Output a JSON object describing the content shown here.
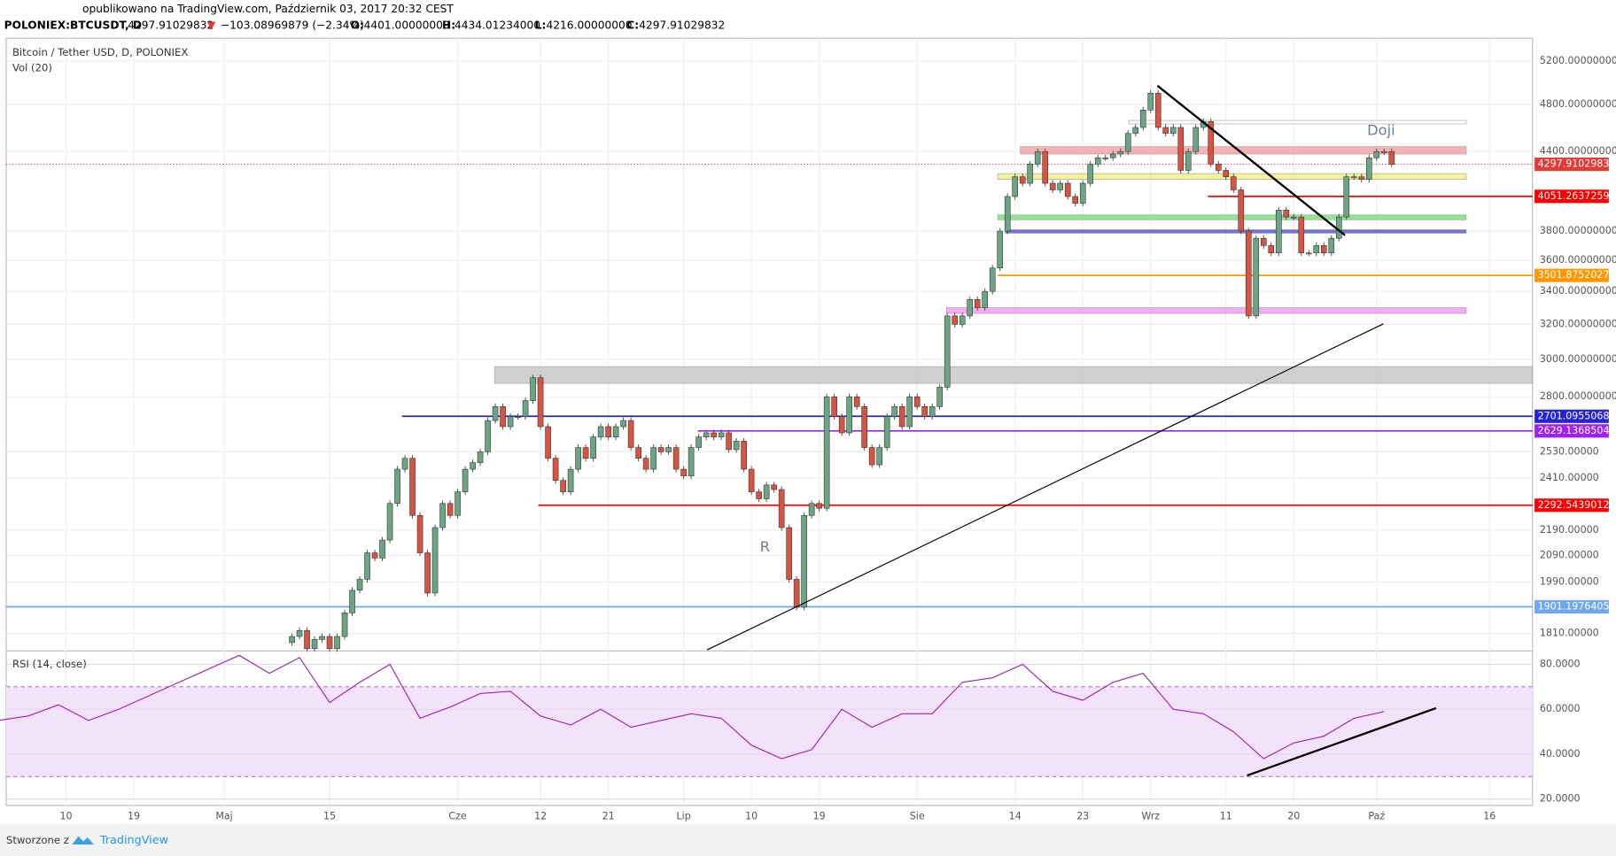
{
  "header": {
    "published": "opublikowano na TradingView.com, Październik 03, 2017 20:32 CEST",
    "symbol": "POLONIEX:BTCUSDT, D",
    "last": "4297.91029832",
    "arrow": "▼",
    "change": "−103.08969879 (−2.34%)",
    "o_label": "O:",
    "open": "4401.00000000",
    "h_label": "H:",
    "high": "4434.01234000",
    "l_label": "L:",
    "low": "4216.00000000",
    "c_label": "C:",
    "close": "4297.91029832"
  },
  "footer": {
    "made_with": "Stworzone z",
    "brand": "TradingView"
  },
  "chart_data": [
    {
      "type": "candlestick",
      "title": "Bitcoin / Tether USD, D, POLONIEX",
      "subtitle": "Vol (20)",
      "log_scale": true,
      "grid": true,
      "up_color": "#6ba583",
      "down_color": "#d75442",
      "x": [
        38,
        39,
        40,
        41,
        42,
        43,
        44,
        45,
        46,
        47,
        48,
        49,
        50,
        51,
        52,
        53,
        54,
        55,
        56,
        57,
        58,
        59,
        60,
        61,
        62,
        63,
        64,
        65,
        66,
        67,
        68,
        69,
        70,
        71,
        72,
        73,
        74,
        75,
        76,
        77,
        78,
        79,
        80,
        81,
        82,
        83,
        84,
        85,
        86,
        87,
        88,
        89,
        90,
        91,
        92,
        93,
        94,
        95,
        96,
        97,
        98,
        99,
        100,
        101,
        102,
        103,
        104,
        105,
        106,
        107,
        108,
        109,
        110,
        111,
        112,
        113,
        114,
        115,
        116,
        117,
        118,
        119,
        120,
        121,
        122,
        123,
        124,
        125,
        126,
        127,
        128,
        129,
        130,
        131,
        132,
        133,
        134,
        135,
        136,
        137,
        138,
        139,
        140,
        141,
        142,
        143,
        144,
        145,
        146,
        147,
        148,
        149,
        150,
        151,
        152,
        153,
        154,
        155,
        156,
        157,
        158,
        159,
        160,
        161,
        162,
        163,
        164,
        165,
        166,
        167,
        168,
        169,
        170,
        171,
        172,
        173,
        174,
        175,
        176,
        177,
        178,
        179,
        180,
        181,
        182,
        183,
        184,
        185
      ],
      "values": [
        1780,
        1800,
        1820,
        1760,
        1790,
        1800,
        1760,
        1800,
        1880,
        1960,
        2000,
        2100,
        2080,
        2150,
        2300,
        2450,
        2500,
        2250,
        2100,
        1950,
        2200,
        2300,
        2250,
        2350,
        2450,
        2480,
        2530,
        2680,
        2750,
        2650,
        2700,
        2700,
        2780,
        2900,
        2650,
        2500,
        2400,
        2350,
        2450,
        2550,
        2500,
        2600,
        2650,
        2600,
        2650,
        2680,
        2550,
        2500,
        2450,
        2550,
        2530,
        2550,
        2450,
        2420,
        2550,
        2600,
        2620,
        2600,
        2620,
        2540,
        2580,
        2450,
        2350,
        2320,
        2380,
        2360,
        2200,
        2000,
        1900,
        2250,
        2300,
        2280,
        2800,
        2700,
        2620,
        2800,
        2750,
        2550,
        2470,
        2550,
        2700,
        2750,
        2650,
        2800,
        2750,
        2700,
        2750,
        2850,
        3250,
        3200,
        3250,
        3350,
        3300,
        3400,
        3550,
        3800,
        4050,
        4200,
        4150,
        4300,
        4400,
        4150,
        4100,
        4150,
        4050,
        4000,
        4150,
        4300,
        4350,
        4350,
        4380,
        4400,
        4550,
        4600,
        4750,
        4900,
        4600,
        4550,
        4600,
        4250,
        4400,
        4600,
        4650,
        4300,
        4250,
        4200,
        4100,
        3800,
        3250,
        3750,
        3700,
        3650,
        3950,
        3900,
        3900,
        3650,
        3650,
        3700,
        3650,
        3750,
        3900,
        4200,
        4200,
        4180,
        4350,
        4400,
        4400,
        4298
      ],
      "xlim": [
        1.06,
        203.7
      ],
      "ylim": [
        1756,
        5422
      ],
      "xticks": [
        {
          "value": 9,
          "label": "10"
        },
        {
          "value": 18,
          "label": "19"
        },
        {
          "value": 30,
          "label": "Maj"
        },
        {
          "value": 44,
          "label": "15"
        },
        {
          "value": 61,
          "label": "Cze"
        },
        {
          "value": 72,
          "label": "12"
        },
        {
          "value": 81,
          "label": "21"
        },
        {
          "value": 91,
          "label": "Lip"
        },
        {
          "value": 100,
          "label": "10"
        },
        {
          "value": 109,
          "label": "19"
        },
        {
          "value": 122,
          "label": "Sie"
        },
        {
          "value": 135,
          "label": "14"
        },
        {
          "value": 144,
          "label": "23"
        },
        {
          "value": 153,
          "label": "Wrz"
        },
        {
          "value": 163,
          "label": "11"
        },
        {
          "value": 172,
          "label": "20"
        },
        {
          "value": 183,
          "label": "Paź"
        },
        {
          "value": 198,
          "label": "16"
        }
      ],
      "yticks": [
        {
          "value": 5200,
          "label": "5200.00000000"
        },
        {
          "value": 4800,
          "label": "4800.00000000"
        },
        {
          "value": 4400,
          "label": "4400.00000000"
        },
        {
          "value": 3800,
          "label": "3800.00000000"
        },
        {
          "value": 3600,
          "label": "3600.00000000"
        },
        {
          "value": 3400,
          "label": "3400.00000000"
        },
        {
          "value": 3200,
          "label": "3200.00000000"
        },
        {
          "value": 3000,
          "label": "3000.00000000"
        },
        {
          "value": 2800,
          "label": "2800.00000000"
        },
        {
          "value": 2530,
          "label": "2530.00000"
        },
        {
          "value": 2410,
          "label": "2410.00000"
        },
        {
          "value": 2190,
          "label": "2190.00000"
        },
        {
          "value": 2090,
          "label": "2090.00000"
        },
        {
          "value": 1990,
          "label": "1990.00000"
        },
        {
          "value": 1810,
          "label": "1810.00000"
        }
      ],
      "last_price": {
        "value": 4297.91029832,
        "label": "4297.91029832",
        "color": "#e53935"
      },
      "levels": [
        {
          "value": 4051.26372591,
          "label": "4051.26372591",
          "color": "#ff0000",
          "from": 160.6
        },
        {
          "value": 3501.87520278,
          "label": "3501.87520278",
          "color": "#ff9800",
          "from": 132.7
        },
        {
          "value": 2701.09550689,
          "label": "2701.09550689",
          "color": "#2424d6",
          "from": 53.6
        },
        {
          "value": 2629.13685046,
          "label": "2629.13685046",
          "color": "#a020f0",
          "from": 92.9
        },
        {
          "value": 2292.54390125,
          "label": "2292.54390125",
          "color": "#ff0000",
          "from": 71.7
        },
        {
          "value": 1901.19764056,
          "label": "1901.19764056",
          "color": "#6fa8f0",
          "from": 1.06
        }
      ],
      "zones": [
        {
          "from": 65.9,
          "to": 203.7,
          "low": 2870,
          "high": 2960,
          "color": "#c8c8c8"
        },
        {
          "from": 135.7,
          "to": 194.9,
          "low": 4380,
          "high": 4440,
          "color": "#f4a6a6"
        },
        {
          "from": 150.1,
          "to": 194.9,
          "low": 4630,
          "high": 4660,
          "color": "#ffffff"
        },
        {
          "from": 132.7,
          "to": 194.9,
          "low": 4180,
          "high": 4225,
          "color": "#f5f08a"
        },
        {
          "from": 132.7,
          "to": 194.9,
          "low": 3880,
          "high": 3915,
          "color": "#7ee07e"
        },
        {
          "from": 133.7,
          "to": 194.9,
          "low": 3785,
          "high": 3810,
          "color": "#5a5adc"
        },
        {
          "from": 125.9,
          "to": 194.9,
          "low": 3265,
          "high": 3300,
          "color": "#f59cf2"
        }
      ],
      "trendlines": [
        {
          "x": [
            153.9,
            178.8
          ],
          "y": [
            4968,
            3771
          ],
          "width": 2
        },
        {
          "x": [
            94.1,
            183.9
          ],
          "y": [
            1756,
            3203
          ],
          "width": 1
        }
      ],
      "annotations": [
        {
          "text": "R",
          "x": 101.8,
          "y": 2120
        },
        {
          "text": "Doji",
          "x": 183.6,
          "y": 4569
        }
      ]
    },
    {
      "type": "line",
      "title": "RSI (14, close)",
      "color": "#9c27b0",
      "band": [
        30,
        70
      ],
      "x": [
        0,
        4,
        8,
        12,
        16,
        20,
        24,
        28,
        32,
        36,
        40,
        44,
        48,
        52,
        56,
        60,
        64,
        68,
        72,
        76,
        80,
        84,
        88,
        92,
        96,
        100,
        104,
        108,
        112,
        116,
        120,
        124,
        128,
        132,
        136,
        140,
        144,
        148,
        152,
        156,
        160,
        164,
        168,
        172,
        176,
        180,
        184
      ],
      "values": [
        55,
        57,
        62,
        55,
        60,
        66,
        72,
        78,
        84,
        76,
        83,
        63,
        72,
        80,
        56,
        61,
        67,
        68,
        57,
        53,
        60,
        52,
        55,
        58,
        56,
        44,
        38,
        42,
        60,
        52,
        58,
        58,
        72,
        74,
        80,
        68,
        64,
        72,
        76,
        60,
        58,
        50,
        38,
        45,
        48,
        56,
        59
      ],
      "xlim": [
        1.06,
        203.7
      ],
      "ylim": [
        17.2,
        85.5
      ],
      "yticks": [
        {
          "value": 80,
          "label": "80.0000"
        },
        {
          "value": 60,
          "label": "60.0000"
        },
        {
          "value": 40,
          "label": "40.0000"
        },
        {
          "value": 20,
          "label": "20.0000"
        }
      ],
      "trendline": {
        "x": [
          165.8,
          190.9
        ],
        "y": [
          30.5,
          60.5
        ]
      }
    }
  ]
}
